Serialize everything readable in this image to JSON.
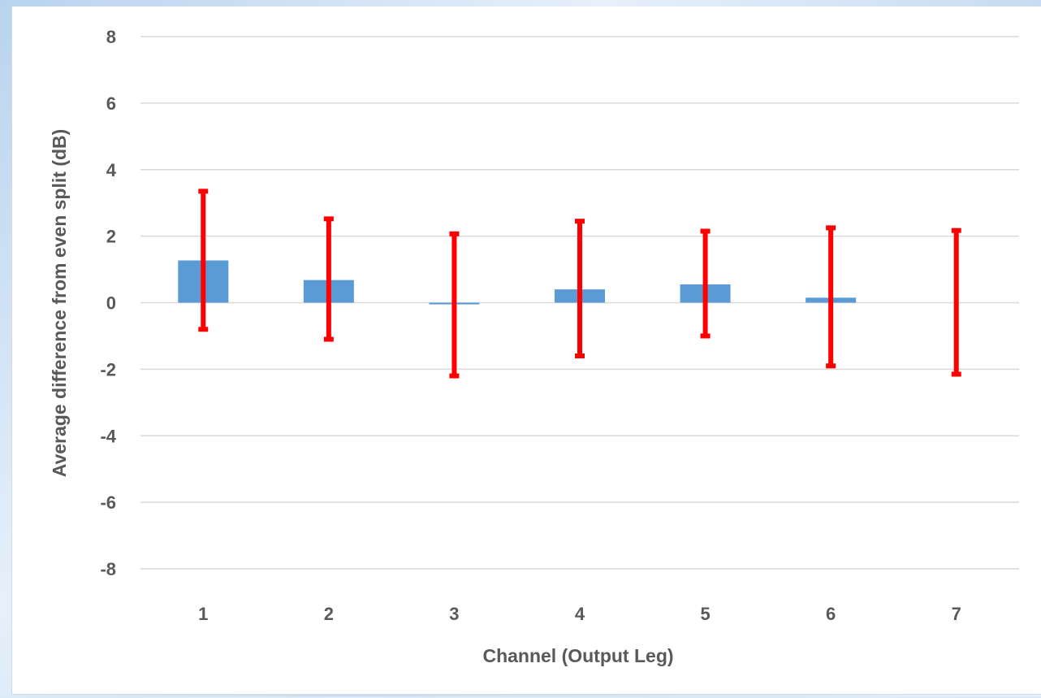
{
  "chart_data": {
    "type": "bar",
    "xlabel": "Channel (Output Leg)",
    "ylabel": "Average difference from even split (dB)",
    "categories": [
      "1",
      "2",
      "3",
      "4",
      "5",
      "6",
      "7"
    ],
    "values": [
      1.27,
      0.68,
      -0.05,
      0.4,
      0.55,
      0.15,
      0.0
    ],
    "error_bars": {
      "upper": [
        3.35,
        2.52,
        2.07,
        2.45,
        2.15,
        2.25,
        2.17
      ],
      "lower": [
        -0.8,
        -1.1,
        -2.2,
        -1.6,
        -1.0,
        -1.9,
        -2.15
      ]
    },
    "ylim": [
      -8,
      8
    ],
    "yticks": [
      "-8",
      "-6",
      "-4",
      "-2",
      "0",
      "2",
      "4",
      "6",
      "8"
    ],
    "grid": true,
    "colors": {
      "bar": "#5b9bd5",
      "error_bar": "#ff0000",
      "grid": "#d9d9d9",
      "text": "#595959"
    }
  }
}
